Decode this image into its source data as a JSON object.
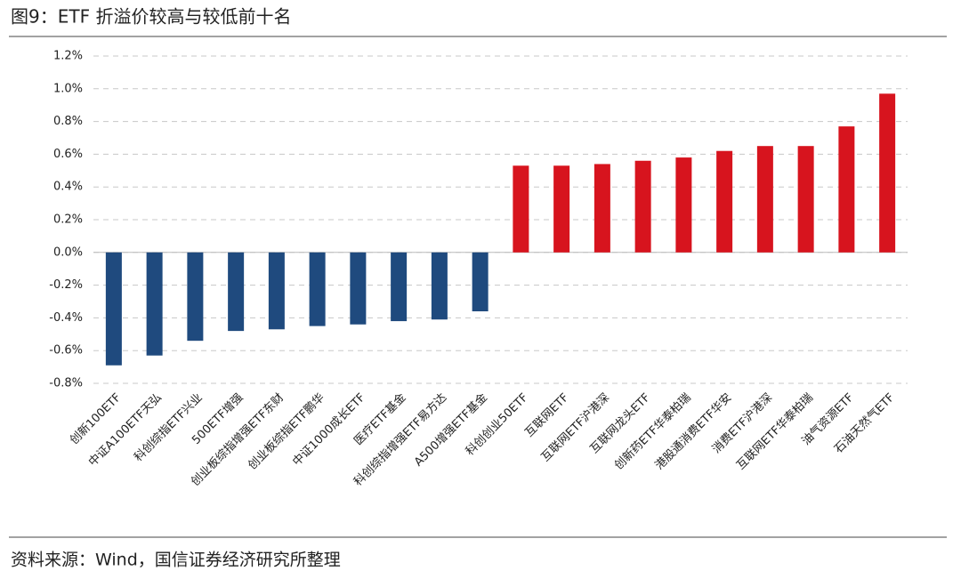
{
  "chart_data": {
    "type": "bar",
    "title": "图9：ETF 折溢价较高与较低前十名",
    "source": "资料来源：Wind，国信证券经济研究所整理",
    "categories": [
      "创新100ETF",
      "中证A100ETF天弘",
      "科创综指ETF兴业",
      "500ETF增强",
      "创业板综指增强ETF东财",
      "创业板综指ETF鹏华",
      "中证1000成长ETF",
      "医疗ETF基金",
      "科创综指增强ETF易方达",
      "A500增强ETF基金",
      "科创创业50ETF",
      "互联网ETF",
      "互联网ETF沪港深",
      "互联网龙头ETF",
      "创新药ETF华泰柏瑞",
      "港股通消费ETF华安",
      "消费ETF沪港深",
      "互联网ETF华泰柏瑞",
      "油气资源ETF",
      "石油天然气ETF"
    ],
    "values": [
      -0.69,
      -0.63,
      -0.54,
      -0.48,
      -0.47,
      -0.45,
      -0.44,
      -0.42,
      -0.41,
      -0.36,
      0.53,
      0.53,
      0.54,
      0.56,
      0.58,
      0.62,
      0.65,
      0.65,
      0.77,
      0.97
    ],
    "positive_color": "#d7141e",
    "negative_color": "#1f4a7e",
    "ylim": [
      -0.8,
      1.2
    ],
    "yticks": [
      {
        "value": -0.8,
        "label": "-0.8%"
      },
      {
        "value": -0.6,
        "label": "-0.6%"
      },
      {
        "value": -0.4,
        "label": "-0.4%"
      },
      {
        "value": -0.2,
        "label": "-0.2%"
      },
      {
        "value": 0,
        "label": "0.0%"
      },
      {
        "value": 0.2,
        "label": "0.2%"
      },
      {
        "value": 0.4,
        "label": "0.4%"
      },
      {
        "value": 0.6,
        "label": "0.6%"
      },
      {
        "value": 0.8,
        "label": "0.8%"
      },
      {
        "value": 1.0,
        "label": "1.0%"
      },
      {
        "value": 1.2,
        "label": "1.2%"
      }
    ],
    "grid": true
  }
}
